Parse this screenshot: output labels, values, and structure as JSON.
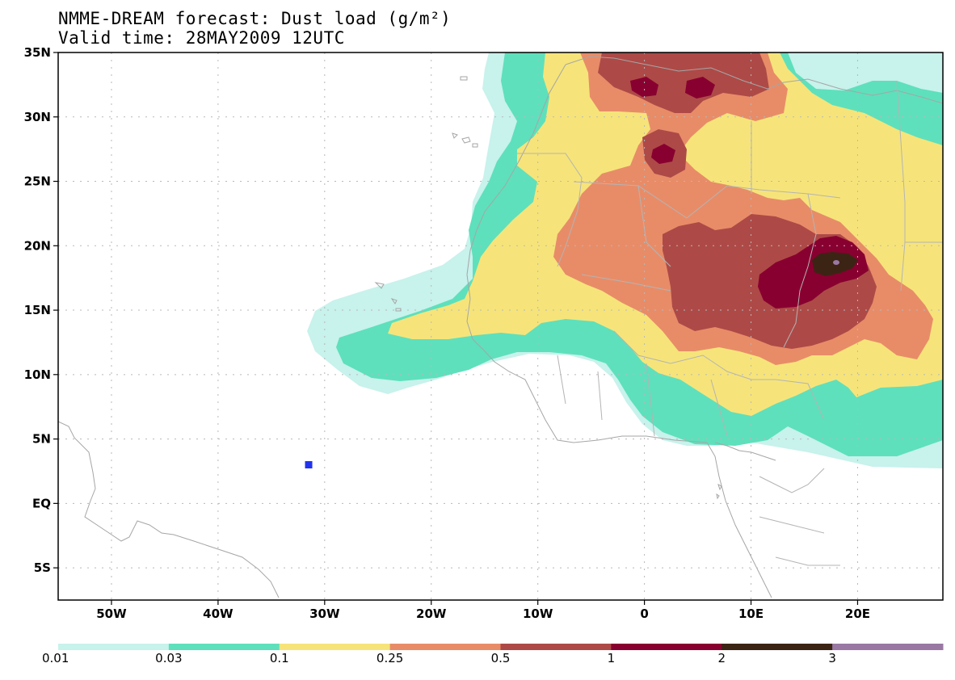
{
  "title": {
    "line1": "NMME-DREAM forecast: Dust load (g/m²)",
    "line2": "Valid time: 28MAY2009 12UTC"
  },
  "map": {
    "lon_range": [
      -55,
      28
    ],
    "lat_range": [
      -7.5,
      35
    ],
    "x_ticks": [
      {
        "lon": -50,
        "label": "50W"
      },
      {
        "lon": -40,
        "label": "40W"
      },
      {
        "lon": -30,
        "label": "30W"
      },
      {
        "lon": -20,
        "label": "20W"
      },
      {
        "lon": -10,
        "label": "10W"
      },
      {
        "lon": 0,
        "label": "0"
      },
      {
        "lon": 10,
        "label": "10E"
      },
      {
        "lon": 20,
        "label": "20E"
      }
    ],
    "y_ticks": [
      {
        "lat": 35,
        "label": "35N"
      },
      {
        "lat": 30,
        "label": "30N"
      },
      {
        "lat": 25,
        "label": "25N"
      },
      {
        "lat": 20,
        "label": "20N"
      },
      {
        "lat": 15,
        "label": "15N"
      },
      {
        "lat": 10,
        "label": "10N"
      },
      {
        "lat": 5,
        "label": "5N"
      },
      {
        "lat": 0,
        "label": "EQ"
      },
      {
        "lat": -5,
        "label": "5S"
      }
    ],
    "station_marker": {
      "lon": -31.5,
      "lat": 3.0,
      "color": "#2233ee"
    }
  },
  "legend": {
    "colors": [
      "#c8f2ec",
      "#5ee0bc",
      "#f6e47a",
      "#e88c68",
      "#ad4a47",
      "#880030",
      "#3c2414",
      "#9a78a4"
    ],
    "labels": [
      "0.01",
      "0.03",
      "0.1",
      "0.25",
      "0.5",
      "1",
      "2",
      "3"
    ]
  }
}
